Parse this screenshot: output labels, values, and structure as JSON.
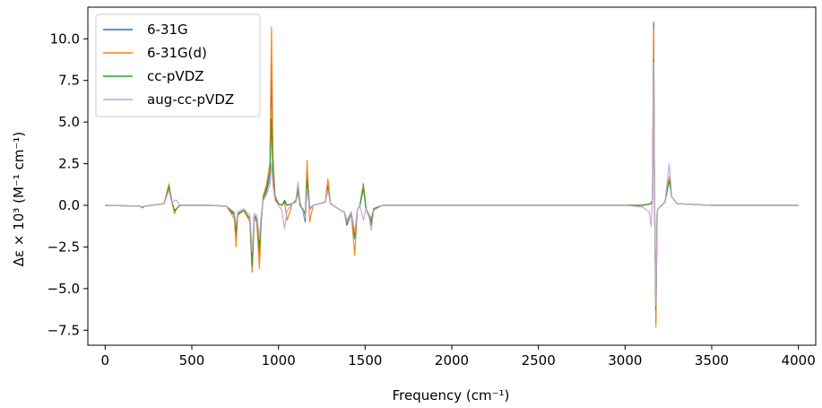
{
  "chart_data": {
    "type": "line",
    "title": "",
    "xlabel": "Frequency (cm⁻¹)",
    "ylabel": "Δε × 10³ (M⁻¹ cm⁻¹)",
    "xlim": [
      -100,
      4100
    ],
    "ylim": [
      -8.4,
      11.9
    ],
    "xticks": [
      0,
      500,
      1000,
      1500,
      2000,
      2500,
      3000,
      3500,
      4000
    ],
    "xtick_labels": [
      "0",
      "500",
      "1000",
      "1500",
      "2000",
      "2500",
      "3000",
      "3500",
      "4000"
    ],
    "yticks": [
      -7.5,
      -5.0,
      -2.5,
      0.0,
      2.5,
      5.0,
      7.5,
      10.0
    ],
    "ytick_labels": [
      "−7.5",
      "−5.0",
      "−2.5",
      "0.0",
      "2.5",
      "5.0",
      "7.5",
      "10.0"
    ],
    "grid": false,
    "legend_position": "top-left",
    "series": [
      {
        "name": "6-31G",
        "color": "#1f77b4",
        "x": [
          0,
          200,
          215,
          230,
          340,
          368,
          385,
          400,
          412,
          430,
          600,
          700,
          745,
          755,
          765,
          800,
          835,
          848,
          860,
          875,
          890,
          900,
          912,
          930,
          950,
          960,
          968,
          980,
          1000,
          1020,
          1035,
          1050,
          1080,
          1100,
          1113,
          1125,
          1140,
          1155,
          1165,
          1180,
          1200,
          1270,
          1285,
          1300,
          1330,
          1360,
          1380,
          1395,
          1420,
          1440,
          1455,
          1470,
          1490,
          1505,
          1520,
          1535,
          1550,
          1600,
          2000,
          2500,
          3000,
          3100,
          3150,
          3158,
          3165,
          3170,
          3178,
          3185,
          3200,
          3230,
          3255,
          3270,
          3300,
          3500,
          4000
        ],
        "y": [
          0.0,
          -0.05,
          -0.15,
          -0.05,
          0.1,
          1.2,
          0.2,
          -0.4,
          -0.2,
          0.0,
          0.0,
          -0.05,
          -0.6,
          -1.8,
          -0.5,
          -0.3,
          -0.8,
          -4.0,
          -0.6,
          -0.9,
          -3.0,
          -1.0,
          0.5,
          1.0,
          2.0,
          8.2,
          2.5,
          0.5,
          0.1,
          0.0,
          0.3,
          0.0,
          0.1,
          0.3,
          1.2,
          0.0,
          -0.3,
          -1.0,
          2.0,
          -0.2,
          0.0,
          0.2,
          1.2,
          0.1,
          -0.1,
          -0.3,
          -0.4,
          -1.2,
          -0.5,
          -2.0,
          -0.3,
          0.0,
          1.3,
          -0.2,
          -0.6,
          -1.2,
          -0.2,
          0.0,
          0.0,
          0.0,
          0.0,
          0.0,
          0.1,
          0.3,
          11.0,
          0.5,
          -7.0,
          -0.3,
          -0.1,
          0.2,
          1.6,
          0.5,
          0.1,
          0.0,
          0.0
        ]
      },
      {
        "name": "6-31G(d)",
        "color": "#ff7f0e",
        "x": [
          0,
          200,
          215,
          230,
          340,
          368,
          385,
          400,
          412,
          430,
          600,
          700,
          745,
          755,
          765,
          800,
          835,
          848,
          860,
          875,
          890,
          900,
          912,
          930,
          950,
          960,
          968,
          980,
          1000,
          1020,
          1035,
          1050,
          1080,
          1100,
          1113,
          1125,
          1140,
          1155,
          1165,
          1180,
          1200,
          1270,
          1285,
          1300,
          1330,
          1360,
          1380,
          1395,
          1420,
          1440,
          1455,
          1470,
          1490,
          1505,
          1520,
          1535,
          1550,
          1600,
          2000,
          2500,
          3000,
          3100,
          3150,
          3158,
          3165,
          3170,
          3178,
          3185,
          3200,
          3230,
          3255,
          3270,
          3300,
          3500,
          4000
        ],
        "y": [
          0.0,
          -0.05,
          -0.1,
          -0.05,
          0.1,
          1.3,
          0.2,
          -0.5,
          -0.2,
          0.0,
          0.0,
          -0.05,
          -0.8,
          -2.5,
          -0.6,
          -0.3,
          -1.0,
          -4.0,
          -0.8,
          -1.0,
          -3.8,
          -1.0,
          0.6,
          1.2,
          2.5,
          10.7,
          3.0,
          0.6,
          0.1,
          0.0,
          0.2,
          -0.9,
          0.1,
          0.2,
          0.8,
          0.0,
          -0.2,
          -0.5,
          2.7,
          -1.0,
          0.0,
          0.2,
          1.6,
          0.1,
          -0.1,
          -0.3,
          -0.4,
          -1.0,
          -0.5,
          -3.0,
          -0.3,
          0.0,
          1.2,
          -0.2,
          -0.5,
          -0.8,
          -0.2,
          0.0,
          0.0,
          0.0,
          0.0,
          0.0,
          0.1,
          0.3,
          10.6,
          0.5,
          -7.3,
          -0.3,
          -0.1,
          0.2,
          1.7,
          0.5,
          0.1,
          0.0,
          0.0
        ]
      },
      {
        "name": "cc-pVDZ",
        "color": "#2ca02c",
        "x": [
          0,
          200,
          215,
          230,
          340,
          368,
          385,
          400,
          412,
          430,
          600,
          700,
          745,
          755,
          765,
          800,
          835,
          848,
          860,
          875,
          890,
          900,
          912,
          930,
          950,
          960,
          968,
          980,
          1000,
          1020,
          1035,
          1050,
          1080,
          1100,
          1113,
          1125,
          1140,
          1155,
          1165,
          1180,
          1200,
          1270,
          1285,
          1300,
          1330,
          1360,
          1380,
          1395,
          1420,
          1440,
          1455,
          1470,
          1490,
          1505,
          1520,
          1535,
          1550,
          1600,
          2000,
          2500,
          3000,
          3100,
          3150,
          3158,
          3165,
          3170,
          3178,
          3185,
          3200,
          3230,
          3255,
          3270,
          3300,
          3500,
          4000
        ],
        "y": [
          0.0,
          -0.05,
          -0.1,
          -0.05,
          0.1,
          1.1,
          0.2,
          -0.3,
          -0.2,
          0.0,
          0.0,
          -0.05,
          -0.5,
          -1.6,
          -0.5,
          -0.3,
          -0.8,
          -3.6,
          -0.6,
          -0.8,
          -2.6,
          -0.8,
          0.4,
          0.8,
          1.6,
          5.2,
          1.8,
          0.4,
          0.1,
          0.0,
          0.2,
          0.0,
          0.1,
          0.2,
          0.9,
          0.0,
          -0.2,
          -0.6,
          1.5,
          -0.2,
          0.0,
          0.2,
          1.0,
          0.1,
          -0.1,
          -0.3,
          -0.4,
          -0.9,
          -0.4,
          -1.8,
          -0.3,
          0.0,
          1.0,
          -0.2,
          -0.5,
          -1.0,
          -0.2,
          0.0,
          0.0,
          0.0,
          0.0,
          0.0,
          0.1,
          0.3,
          8.7,
          0.5,
          -6.2,
          -0.3,
          -0.1,
          0.2,
          1.5,
          0.5,
          0.1,
          0.0,
          0.0
        ]
      },
      {
        "name": "aug-cc-pVDZ",
        "color": "#c7a3d9",
        "x": [
          0,
          200,
          215,
          230,
          340,
          368,
          385,
          400,
          412,
          430,
          600,
          700,
          745,
          755,
          765,
          800,
          835,
          848,
          860,
          875,
          890,
          900,
          912,
          930,
          950,
          960,
          968,
          980,
          1000,
          1020,
          1035,
          1050,
          1080,
          1100,
          1113,
          1125,
          1140,
          1155,
          1165,
          1180,
          1200,
          1270,
          1285,
          1300,
          1330,
          1360,
          1380,
          1395,
          1420,
          1440,
          1455,
          1470,
          1490,
          1505,
          1520,
          1535,
          1550,
          1600,
          2000,
          2500,
          3000,
          3100,
          3140,
          3150,
          3158,
          3165,
          3170,
          3178,
          3185,
          3200,
          3230,
          3255,
          3270,
          3300,
          3500,
          4000
        ],
        "y": [
          0.0,
          -0.05,
          -0.1,
          -0.05,
          0.1,
          0.9,
          0.1,
          0.3,
          0.3,
          0.0,
          0.0,
          -0.05,
          -0.4,
          -1.2,
          -0.4,
          -0.2,
          -0.6,
          -2.8,
          -0.5,
          -0.6,
          -2.0,
          -0.6,
          0.3,
          0.6,
          1.2,
          2.5,
          1.2,
          0.3,
          0.0,
          -0.3,
          -1.4,
          -0.3,
          0.1,
          0.2,
          1.4,
          0.2,
          -0.3,
          -0.8,
          1.0,
          -0.3,
          0.0,
          0.2,
          0.9,
          0.1,
          -0.1,
          -0.3,
          -0.4,
          -0.9,
          -0.4,
          -1.6,
          -0.3,
          0.0,
          -0.9,
          -0.2,
          -0.5,
          -1.5,
          -0.3,
          0.0,
          0.0,
          0.0,
          0.0,
          -0.1,
          -0.4,
          -1.3,
          0.3,
          8.6,
          0.5,
          -6.0,
          -0.3,
          -0.1,
          0.2,
          2.5,
          0.5,
          0.1,
          0.0,
          0.0
        ]
      }
    ]
  }
}
